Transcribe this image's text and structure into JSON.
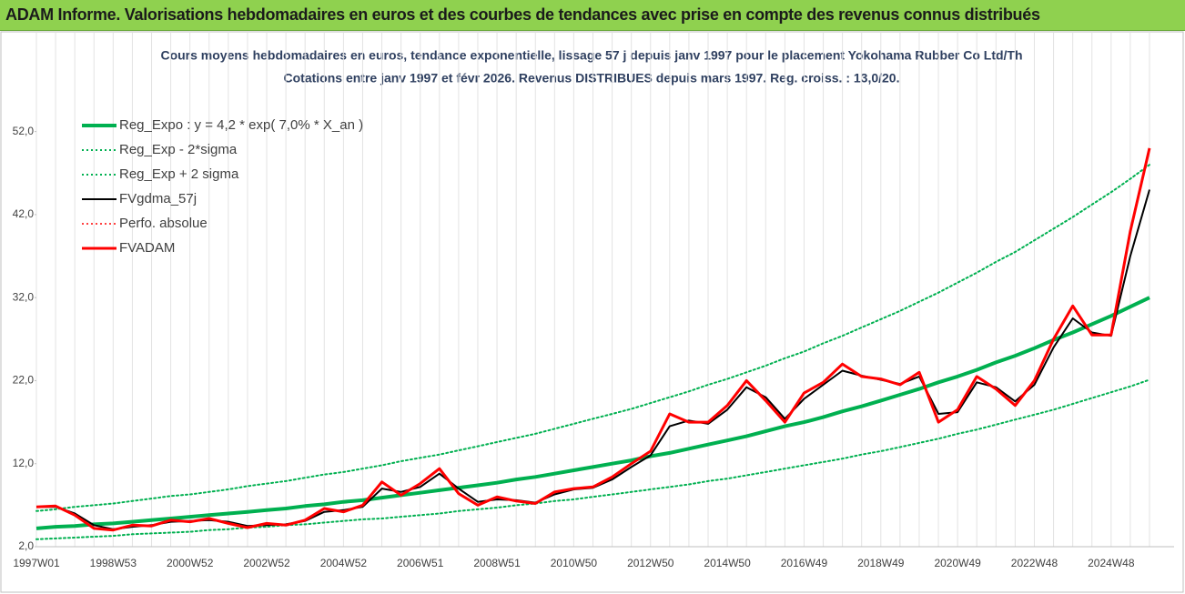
{
  "header": {
    "title": "ADAM Informe. Valorisations hebdomadaires en euros et des courbes de tendances avec prise en compte des revenus connus distribués"
  },
  "chart_data": {
    "type": "line",
    "subtitle": [
      "Cours moyens hebdomadaires en euros, tendance exponentielle, lissage 57 j depuis janv 1997 pour le placement Yokohama Rubber Co Ltd/Th",
      "Cotations entre janv 1997 et févr 2026. Revenus DISTRIBUES depuis mars 1997. Reg. croiss. : 13,0/20."
    ],
    "categories": [
      "1997W01",
      null,
      null,
      null,
      "1998W53",
      null,
      null,
      null,
      "2000W52",
      null,
      null,
      null,
      "2002W52",
      null,
      null,
      null,
      "2004W52",
      null,
      null,
      null,
      "2006W51",
      null,
      null,
      null,
      "2008W51",
      null,
      null,
      null,
      "2010W50",
      null,
      null,
      null,
      "2012W50",
      null,
      null,
      null,
      "2014W50",
      null,
      null,
      null,
      "2016W49",
      null,
      null,
      null,
      "2018W49",
      null,
      null,
      null,
      "2020W49",
      null,
      null,
      null,
      "2022W48",
      null,
      null,
      null,
      "2024W48",
      null,
      null
    ],
    "ylim": [
      2,
      63.9
    ],
    "yticks": [
      {
        "value": 2,
        "label": "2,0"
      },
      {
        "value": 12,
        "label": "12,0"
      },
      {
        "value": 22,
        "label": "22,0"
      },
      {
        "value": 32,
        "label": "32,0"
      },
      {
        "value": 42,
        "label": "42,0"
      },
      {
        "value": 52,
        "label": "52,0"
      }
    ],
    "grid": "x",
    "legend": "top-left",
    "series": [
      {
        "name": "Reg_Expo : y = 4,2 * exp( 7,0% *  X_an )",
        "color": "#00b050",
        "width": 4,
        "dash": "solid",
        "values": [
          4.2,
          4.4,
          4.5,
          4.7,
          4.8,
          5.0,
          5.2,
          5.4,
          5.6,
          5.8,
          6.0,
          6.2,
          6.4,
          6.6,
          6.9,
          7.1,
          7.4,
          7.6,
          7.9,
          8.2,
          8.5,
          8.8,
          9.1,
          9.4,
          9.7,
          10.1,
          10.4,
          10.8,
          11.2,
          11.6,
          12.0,
          12.4,
          12.9,
          13.3,
          13.8,
          14.3,
          14.8,
          15.3,
          15.9,
          16.5,
          17.0,
          17.6,
          18.3,
          18.9,
          19.6,
          20.3,
          21.0,
          21.8,
          22.5,
          23.3,
          24.2,
          25.0,
          25.9,
          26.9,
          27.8,
          28.8,
          29.8,
          30.9,
          32.0
        ]
      },
      {
        "name": "Reg_Exp - 2*sigma",
        "color": "#00b050",
        "width": 2,
        "dash": "dotted",
        "values": [
          2.9,
          3.0,
          3.1,
          3.2,
          3.3,
          3.5,
          3.6,
          3.7,
          3.8,
          4.0,
          4.1,
          4.3,
          4.4,
          4.6,
          4.7,
          4.9,
          5.1,
          5.3,
          5.4,
          5.6,
          5.8,
          6.0,
          6.3,
          6.5,
          6.7,
          7.0,
          7.2,
          7.5,
          7.7,
          8.0,
          8.3,
          8.6,
          8.9,
          9.2,
          9.5,
          9.9,
          10.2,
          10.6,
          11.0,
          11.4,
          11.8,
          12.2,
          12.6,
          13.1,
          13.5,
          14.0,
          14.5,
          15.0,
          15.6,
          16.1,
          16.7,
          17.3,
          17.9,
          18.5,
          19.2,
          19.9,
          20.6,
          21.3,
          22.1
        ]
      },
      {
        "name": "Reg_Exp + 2 sigma",
        "color": "#00b050",
        "width": 2,
        "dash": "dotted",
        "values": [
          6.3,
          6.5,
          6.8,
          7.0,
          7.2,
          7.5,
          7.8,
          8.1,
          8.3,
          8.6,
          8.9,
          9.3,
          9.6,
          9.9,
          10.3,
          10.7,
          11.0,
          11.4,
          11.8,
          12.3,
          12.7,
          13.1,
          13.6,
          14.1,
          14.6,
          15.1,
          15.6,
          16.2,
          16.8,
          17.4,
          18.0,
          18.6,
          19.3,
          20.0,
          20.7,
          21.5,
          22.2,
          23.0,
          23.8,
          24.7,
          25.5,
          26.5,
          27.4,
          28.4,
          29.4,
          30.4,
          31.5,
          32.6,
          33.8,
          35.0,
          36.3,
          37.5,
          38.9,
          40.3,
          41.7,
          43.2,
          44.7,
          46.3,
          48.0
        ]
      },
      {
        "name": "FVgdma_57j",
        "color": "#000000",
        "width": 2,
        "dash": "solid",
        "values": [
          6.8,
          6.8,
          6.0,
          4.6,
          4.1,
          4.4,
          4.6,
          5.0,
          5.1,
          5.2,
          5.0,
          4.5,
          4.6,
          4.7,
          5.1,
          6.2,
          6.4,
          6.8,
          9.0,
          8.6,
          9.2,
          10.8,
          9.0,
          7.4,
          7.7,
          7.6,
          7.3,
          8.3,
          8.9,
          9.1,
          10.1,
          11.6,
          13.0,
          16.5,
          17.2,
          16.8,
          18.5,
          21.2,
          20.0,
          17.4,
          19.8,
          21.5,
          23.2,
          22.6,
          22.1,
          21.6,
          22.5,
          18.0,
          18.2,
          21.8,
          21.2,
          19.5,
          21.5,
          26.0,
          29.5,
          27.8,
          27.4,
          37.0,
          45.0
        ]
      },
      {
        "name": "Perfo. absolue",
        "color": "#ff0000",
        "width": 1.5,
        "dash": "dotted"
      },
      {
        "name": "FVADAM",
        "color": "#ff0000",
        "width": 3,
        "dash": "solid",
        "values": [
          6.8,
          6.9,
          5.8,
          4.2,
          4.0,
          4.6,
          4.5,
          5.2,
          5.0,
          5.4,
          4.8,
          4.3,
          4.8,
          4.6,
          5.2,
          6.6,
          6.2,
          7.0,
          9.8,
          8.2,
          9.6,
          11.4,
          8.4,
          7.0,
          8.0,
          7.5,
          7.2,
          8.6,
          9.0,
          9.2,
          10.4,
          12.0,
          13.5,
          18.0,
          17.0,
          17.0,
          19.0,
          22.0,
          19.6,
          17.0,
          20.5,
          21.8,
          24.0,
          22.5,
          22.2,
          21.5,
          23.0,
          17.0,
          18.5,
          22.5,
          21.0,
          19.0,
          22.0,
          27.0,
          31.0,
          27.5,
          27.5,
          40.0,
          50.0
        ]
      }
    ]
  }
}
